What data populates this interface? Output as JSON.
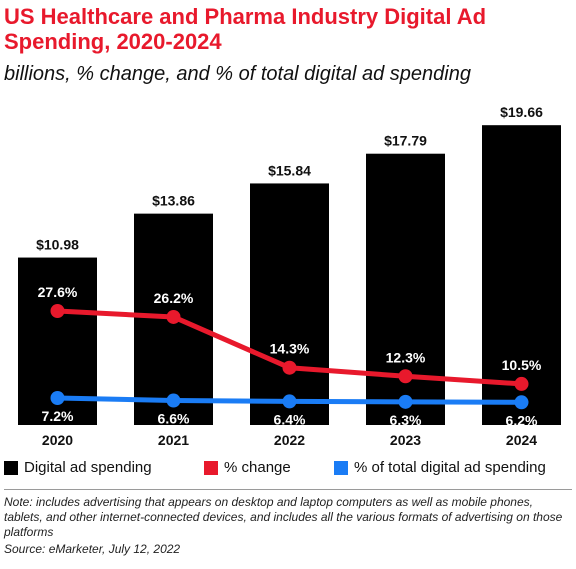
{
  "header": {
    "title": "US Healthcare and Pharma Industry Digital Ad Spending, 2020-2024",
    "subtitle": "billions, % change, and % of total digital ad spending"
  },
  "colors": {
    "title": "#e8192c",
    "bars": "#000000",
    "change_line": "#e8192c",
    "share_line": "#1a7cf5"
  },
  "chart_data": {
    "type": "bar",
    "categories": [
      "2020",
      "2021",
      "2022",
      "2023",
      "2024"
    ],
    "series": [
      {
        "name": "Digital ad spending",
        "type": "bar",
        "values": [
          10.98,
          13.86,
          15.84,
          17.79,
          19.66
        ],
        "labels": [
          "$10.98",
          "$13.86",
          "$15.84",
          "$17.79",
          "$19.66"
        ]
      },
      {
        "name": "% change",
        "type": "line",
        "values": [
          27.6,
          26.2,
          14.3,
          12.3,
          10.5
        ],
        "labels": [
          "27.6%",
          "26.2%",
          "14.3%",
          "12.3%",
          "10.5%"
        ]
      },
      {
        "name": "% of total digital ad spending",
        "type": "line",
        "values": [
          7.2,
          6.6,
          6.4,
          6.3,
          6.2
        ],
        "labels": [
          "7.2%",
          "6.6%",
          "6.4%",
          "6.3%",
          "6.2%"
        ]
      }
    ],
    "title": "US Healthcare and Pharma Industry Digital Ad Spending, 2020-2024",
    "subtitle": "billions, % change, and % of total digital ad spending",
    "legend_position": "bottom",
    "grid": false
  },
  "legend": [
    {
      "label": "Digital ad spending",
      "color": "#000000"
    },
    {
      "label": "% change",
      "color": "#e8192c"
    },
    {
      "label": "% of total digital ad spending",
      "color": "#1a7cf5"
    }
  ],
  "footer": {
    "note": "Note: includes advertising that appears on desktop and laptop computers as well as mobile phones, tablets, and other internet-connected devices, and includes all the various formats of advertising on those platforms",
    "source": "Source: eMarketer, July 12, 2022"
  }
}
